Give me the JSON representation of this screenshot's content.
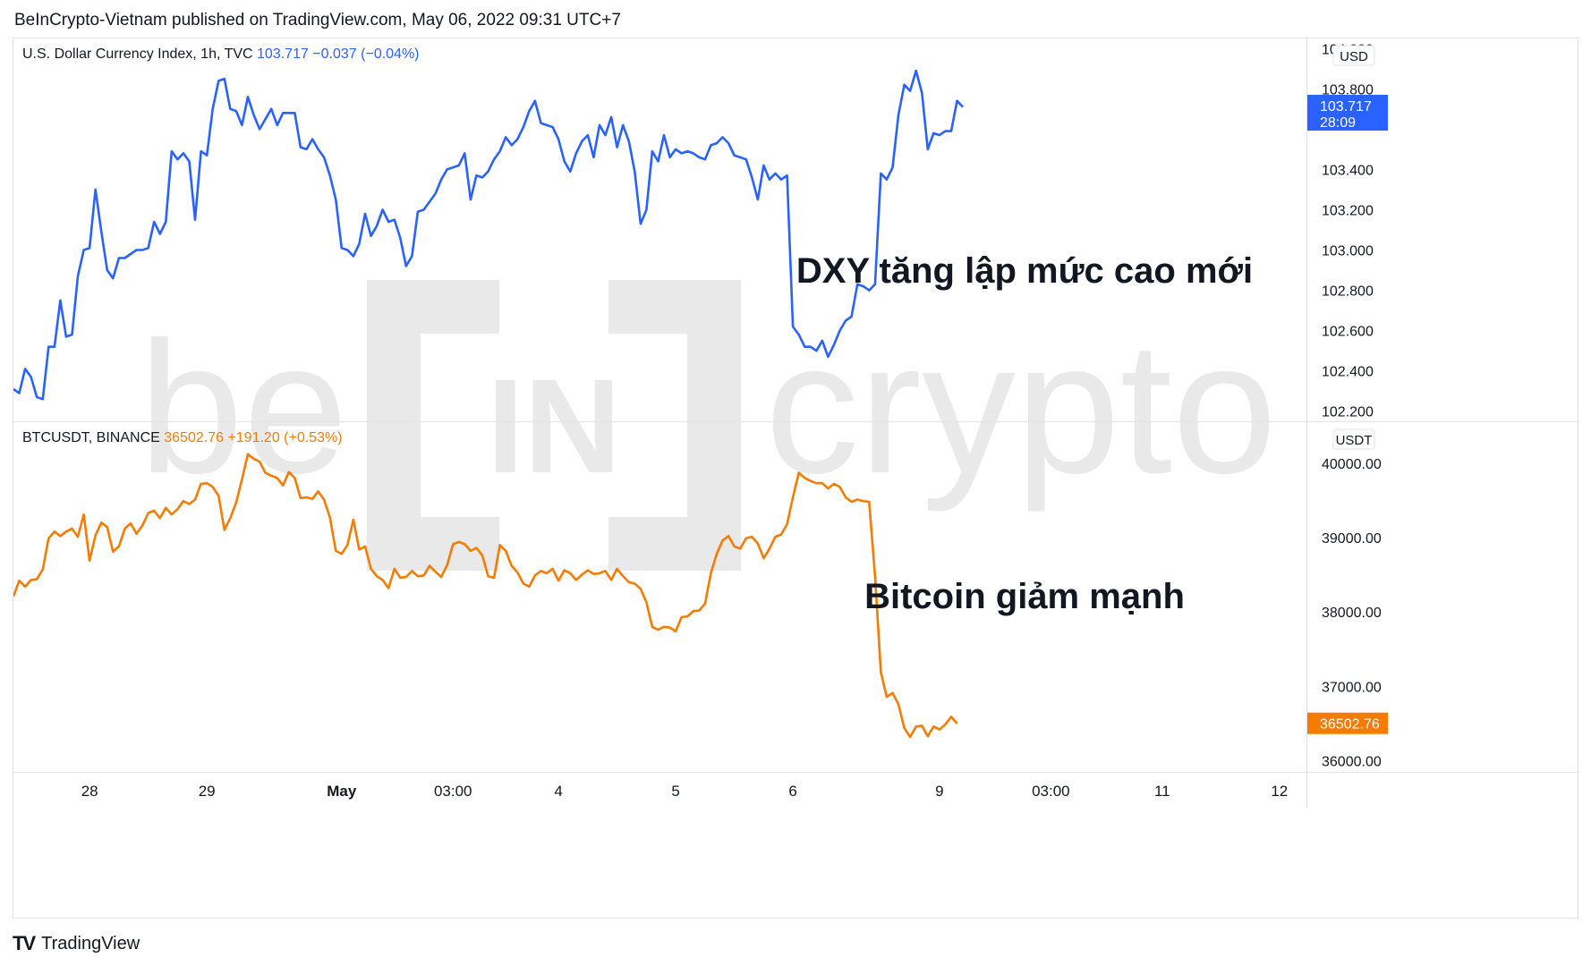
{
  "header": {
    "published_line": "BeInCrypto-Vietnam published on TradingView.com, May 06, 2022 09:31 UTC+7"
  },
  "footer": {
    "brand": "TradingView"
  },
  "watermark": {
    "text": "be[IN]crypto"
  },
  "colors": {
    "dxy": "#2962ff",
    "btc": "#f57c00",
    "grid": "#e0e3eb",
    "text": "#131722"
  },
  "x_axis": {
    "labels": [
      {
        "text": "28",
        "i": 13
      },
      {
        "text": "29",
        "i": 33
      },
      {
        "text": "May",
        "i": 56,
        "bold": true
      },
      {
        "text": "03:00",
        "i": 75
      },
      {
        "text": "4",
        "i": 93
      },
      {
        "text": "5",
        "i": 113
      },
      {
        "text": "6",
        "i": 133
      },
      {
        "text": "9",
        "i": 158
      },
      {
        "text": "03:00",
        "i": 177
      },
      {
        "text": "11",
        "i": 196
      },
      {
        "text": "12",
        "i": 216
      }
    ]
  },
  "annotations": {
    "dxy": "DXY tăng lập mức cao mới",
    "btc": "Bitcoin giảm mạnh"
  },
  "chart_data": [
    {
      "type": "line",
      "symbol": "U.S. Dollar Currency Index, 1h, TVC",
      "legend_price": "103.717",
      "legend_change": "−0.037 (−0.04%)",
      "unit": "USD",
      "last_value": 103.717,
      "last_label": "103.717",
      "countdown": "28:09",
      "y_ticks": [
        {
          "v": 104.0,
          "label": "104.000"
        },
        {
          "v": 103.8,
          "label": "103.800"
        },
        {
          "v": 103.4,
          "label": "103.400"
        },
        {
          "v": 103.2,
          "label": "103.200"
        },
        {
          "v": 103.0,
          "label": "103.000"
        },
        {
          "v": 102.8,
          "label": "102.800"
        },
        {
          "v": 102.6,
          "label": "102.600"
        },
        {
          "v": 102.4,
          "label": "102.400"
        },
        {
          "v": 102.2,
          "label": "102.200"
        }
      ],
      "ylim": [
        102.15,
        104.05
      ],
      "values": [
        102.31,
        102.29,
        102.41,
        102.37,
        102.27,
        102.26,
        102.52,
        102.52,
        102.75,
        102.57,
        102.58,
        102.87,
        103.0,
        103.01,
        103.3,
        103.09,
        102.9,
        102.86,
        102.96,
        102.96,
        102.98,
        103.0,
        103.0,
        103.01,
        103.14,
        103.08,
        103.14,
        103.49,
        103.45,
        103.48,
        103.44,
        103.15,
        103.49,
        103.47,
        103.7,
        103.84,
        103.85,
        103.7,
        103.69,
        103.62,
        103.76,
        103.67,
        103.6,
        103.65,
        103.7,
        103.62,
        103.68,
        103.68,
        103.68,
        103.51,
        103.5,
        103.55,
        103.5,
        103.46,
        103.37,
        103.25,
        103.01,
        103.0,
        102.97,
        103.03,
        103.18,
        103.07,
        103.12,
        103.2,
        103.14,
        103.15,
        103.06,
        102.92,
        102.97,
        103.19,
        103.2,
        103.24,
        103.28,
        103.35,
        103.4,
        103.41,
        103.42,
        103.48,
        103.25,
        103.37,
        103.36,
        103.39,
        103.45,
        103.49,
        103.56,
        103.52,
        103.55,
        103.61,
        103.69,
        103.74,
        103.63,
        103.62,
        103.61,
        103.55,
        103.44,
        103.39,
        103.48,
        103.54,
        103.57,
        103.46,
        103.62,
        103.57,
        103.66,
        103.51,
        103.62,
        103.54,
        103.39,
        103.13,
        103.2,
        103.49,
        103.44,
        103.57,
        103.46,
        103.5,
        103.48,
        103.49,
        103.48,
        103.46,
        103.45,
        103.52,
        103.53,
        103.56,
        103.53,
        103.47,
        103.46,
        103.45,
        103.36,
        103.25,
        103.42,
        103.35,
        103.38,
        103.35,
        103.37,
        102.62,
        102.58,
        102.52,
        102.52,
        102.5,
        102.55,
        102.47,
        102.53,
        102.6,
        102.65,
        102.67,
        102.83,
        102.82,
        102.8,
        102.83,
        103.38,
        103.35,
        103.41,
        103.67,
        103.82,
        103.79,
        103.89,
        103.78,
        103.5,
        103.58,
        103.57,
        103.59,
        103.59,
        103.74,
        103.71
      ],
      "x_offset": 0
    },
    {
      "type": "line",
      "symbol": "BTCUSDT, BINANCE",
      "legend_price": "36502.76",
      "legend_change": "+191.20 (+0.53%)",
      "unit": "USDT",
      "last_value": 36502.76,
      "last_label": "36502.76",
      "y_ticks": [
        {
          "v": 40000,
          "label": "40000.00"
        },
        {
          "v": 39000,
          "label": "39000.00"
        },
        {
          "v": 38000,
          "label": "38000.00"
        },
        {
          "v": 37000,
          "label": "37000.00"
        },
        {
          "v": 36000,
          "label": "36000.00"
        }
      ],
      "ylim": [
        35850,
        40550
      ],
      "values": [
        38210,
        38420,
        38340,
        38430,
        38440,
        38570,
        38990,
        39080,
        39020,
        39080,
        39120,
        39010,
        39310,
        38690,
        39030,
        39200,
        39140,
        38810,
        38880,
        39120,
        39190,
        39050,
        39160,
        39330,
        39360,
        39260,
        39400,
        39310,
        39380,
        39490,
        39450,
        39510,
        39720,
        39730,
        39680,
        39560,
        39100,
        39260,
        39470,
        39780,
        40120,
        40060,
        40020,
        39870,
        39830,
        39800,
        39700,
        39880,
        39800,
        39530,
        39540,
        39520,
        39620,
        39510,
        39270,
        38820,
        38780,
        38900,
        39240,
        38840,
        38880,
        38580,
        38480,
        38430,
        38320,
        38580,
        38460,
        38470,
        38550,
        38480,
        38490,
        38620,
        38540,
        38470,
        38630,
        38910,
        38940,
        38910,
        38820,
        38860,
        38760,
        38480,
        38460,
        38900,
        38820,
        38620,
        38530,
        38380,
        38340,
        38490,
        38550,
        38520,
        38580,
        38420,
        38560,
        38520,
        38430,
        38500,
        38560,
        38510,
        38520,
        38550,
        38430,
        38580,
        38480,
        38400,
        38380,
        38310,
        38130,
        37800,
        37760,
        37800,
        37790,
        37740,
        37930,
        37940,
        38010,
        38020,
        38110,
        38520,
        38780,
        38960,
        39020,
        38880,
        38850,
        38990,
        39010,
        38920,
        38720,
        38850,
        39010,
        39040,
        39180,
        39540,
        39870,
        39800,
        39760,
        39730,
        39730,
        39660,
        39720,
        39680,
        39540,
        39480,
        39510,
        39490,
        39480,
        38480,
        37190,
        36860,
        36910,
        36760,
        36440,
        36320,
        36460,
        36470,
        36330,
        36460,
        36420,
        36490,
        36590,
        36500
      ],
      "x_offset": 0
    }
  ]
}
